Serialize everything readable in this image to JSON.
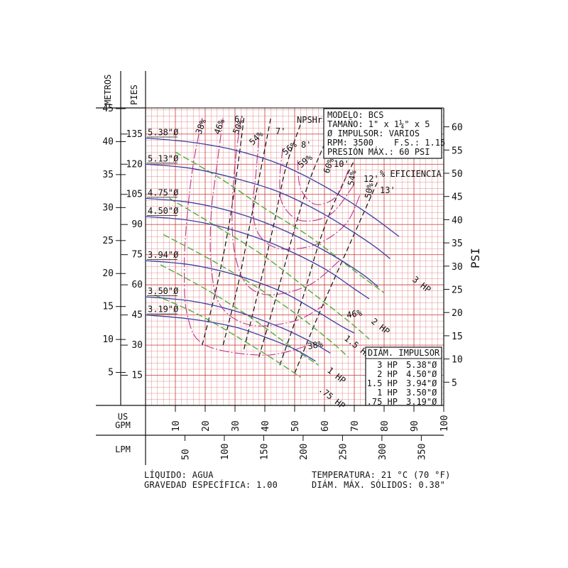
{
  "chart_data": {
    "type": "line",
    "title": "",
    "xlabel": "US GPM",
    "x2label": "LPM",
    "ylabel_left_outer": "METROS",
    "ylabel_left_inner": "PIES",
    "ylabel_right": "PSI",
    "xlim": [
      0,
      100
    ],
    "ylim_feet": [
      0,
      148
    ],
    "x_ticks_gpm": [
      "10",
      "20",
      "30",
      "40",
      "50",
      "60",
      "70",
      "80",
      "90",
      "100"
    ],
    "x_ticks_lpm": [
      "50",
      "100",
      "150",
      "200",
      "250",
      "300",
      "350"
    ],
    "y_ticks_m": [
      "5",
      "10",
      "15",
      "20",
      "25",
      "30",
      "35",
      "40",
      "45"
    ],
    "y_ticks_ft": [
      "15",
      "30",
      "45",
      "60",
      "75",
      "90",
      "105",
      "120",
      "135"
    ],
    "y_ticks_psi": [
      "5",
      "10",
      "15",
      "20",
      "25",
      "30",
      "35",
      "40",
      "45",
      "50",
      "55",
      "60"
    ],
    "series": [
      {
        "name": "5.38\"Ø",
        "kind": "impeller",
        "x": [
          0,
          15,
          30,
          45,
          60,
          75,
          85
        ],
        "y": [
          133,
          131,
          127,
          120,
          109,
          95,
          84
        ]
      },
      {
        "name": "5.13\"Ø",
        "kind": "impeller",
        "x": [
          0,
          15,
          30,
          45,
          60,
          75,
          82
        ],
        "y": [
          120,
          118,
          113,
          106,
          95,
          81,
          73
        ]
      },
      {
        "name": "4.75\"Ø",
        "kind": "impeller",
        "x": [
          0,
          15,
          30,
          45,
          60,
          72,
          78
        ],
        "y": [
          103,
          101,
          96,
          88,
          77,
          66,
          59
        ]
      },
      {
        "name": "4.50\"Ø",
        "kind": "impeller",
        "x": [
          0,
          15,
          30,
          45,
          60,
          70,
          75
        ],
        "y": [
          94,
          92,
          87,
          79,
          68,
          58,
          53
        ]
      },
      {
        "name": "3.94\"Ø",
        "kind": "impeller",
        "x": [
          0,
          15,
          30,
          45,
          55,
          65,
          70
        ],
        "y": [
          72,
          70,
          65,
          57,
          49,
          40,
          36
        ]
      },
      {
        "name": "3.50\"Ø",
        "kind": "impeller",
        "x": [
          0,
          15,
          30,
          45,
          55,
          62
        ],
        "y": [
          54,
          52,
          47,
          39,
          32,
          26
        ]
      },
      {
        "name": "3.19\"Ø",
        "kind": "impeller",
        "x": [
          0,
          15,
          30,
          40,
          50,
          57
        ],
        "y": [
          45,
          43,
          39,
          34,
          28,
          22
        ]
      }
    ],
    "hp_labels": [
      "3 HP",
      "2 HP",
      "1.5 HP",
      "1 HP",
      ".75 HP"
    ],
    "efficiency_labels": [
      "38%",
      "46%",
      "50%",
      "54%",
      "56%",
      "59%",
      "60%",
      "54%",
      "50%",
      "46%",
      "38%"
    ],
    "efficiency_title": "% EFICIENCIA",
    "npshr_title": "NPSHr",
    "npshr_labels": [
      "6'",
      "7'",
      "8'",
      "10'",
      "12'",
      "13'"
    ]
  },
  "info_box": {
    "modelo": "MODELO: BCS",
    "tamano": "TAMAÑO: 1\" x 1¼\" x 5",
    "impulsor": "Ø IMPULSOR: VARIOS",
    "rpm": "RPM: 3500    F.S.: 1.15",
    "presion": "PRESIÓN MÁX.: 60 PSI"
  },
  "impeller_table": {
    "header": "DIÁM. IMPULSOR",
    "rows": [
      {
        "hp": "3 HP",
        "diam": "5.38\"Ø"
      },
      {
        "hp": "2 HP",
        "diam": "4.50\"Ø"
      },
      {
        "hp": "1.5 HP",
        "diam": "3.94\"Ø"
      },
      {
        "hp": "1 HP",
        "diam": "3.50\"Ø"
      },
      {
        "hp": ".75 HP",
        "diam": "3.19\"Ø"
      }
    ]
  },
  "footer": {
    "liquido": "LÍQUIDO: AGUA",
    "gravedad": "GRAVEDAD ESPECÍFICA: 1.00",
    "temperatura": "TEMPERATURA: 21 °C (70 °F)",
    "solidos": "DIÁM. MÁX. SÓLIDOS: 0.38\""
  },
  "colors": {
    "grid": "#c8332f",
    "impeller": "#3a3fa0",
    "hp": "#4caf3c",
    "efficiency": "#c0338a",
    "npshr": "#111111"
  }
}
